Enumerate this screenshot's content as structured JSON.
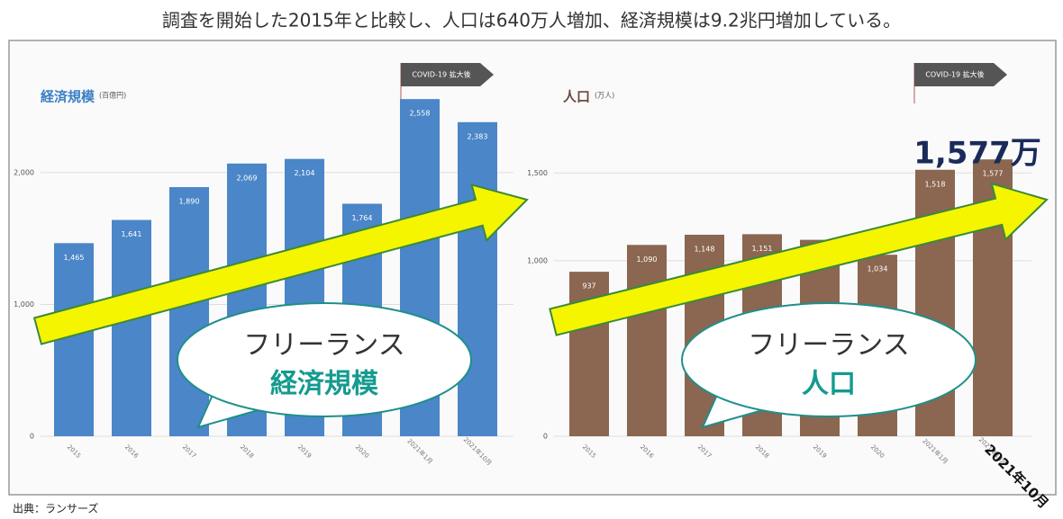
{
  "title": "調査を開始した2015年と比較し、人口は640万人増加、経済規模は9.2兆円増加している。",
  "source": "出典：ランサーズ",
  "corner_label": "2021年10月",
  "chart_data": [
    {
      "type": "bar",
      "title": "経済規模",
      "unit": "(百億円)",
      "annotation": "COVID-19 拡大後",
      "callout": [
        "フリーランス",
        "経済規模"
      ],
      "color": "#4a86c8",
      "categories": [
        "2015",
        "2016",
        "2017",
        "2018",
        "2019",
        "2020",
        "2021年1月",
        "2021年10月"
      ],
      "values": [
        1465,
        1641,
        1890,
        2069,
        2104,
        1764,
        2558,
        2383
      ],
      "value_labels": [
        "1,465",
        "1,641",
        "1,890",
        "2,069",
        "2,104",
        "1,764",
        "2,558",
        "2,383"
      ],
      "ylim": [
        0,
        2600
      ],
      "yticks": [
        0,
        {
          "value": 1000,
          "label": "1,000"
        },
        {
          "value": 2000,
          "label": "2,000"
        }
      ],
      "grid": true
    },
    {
      "type": "bar",
      "title": "人口",
      "unit": "(万人)",
      "annotation": "COVID-19 拡大後",
      "callout": [
        "フリーランス",
        "人口"
      ],
      "highlight": "1,577万",
      "color": "#8b6650",
      "categories": [
        "2015",
        "2016",
        "2017",
        "2018",
        "2019",
        "2020",
        "2021年1月",
        "2021年10月"
      ],
      "values": [
        937,
        1090,
        1148,
        1151,
        1119,
        1034,
        1518,
        1577
      ],
      "value_labels": [
        "937",
        "1,090",
        "1,148",
        "1,151",
        "1,119",
        "1,034",
        "1,518",
        "1,577"
      ],
      "ylim": [
        0,
        1650
      ],
      "yticks": [
        0,
        {
          "value": 1000,
          "label": "1,000"
        },
        {
          "value": 1500,
          "label": "1,500"
        }
      ],
      "grid": true
    }
  ]
}
